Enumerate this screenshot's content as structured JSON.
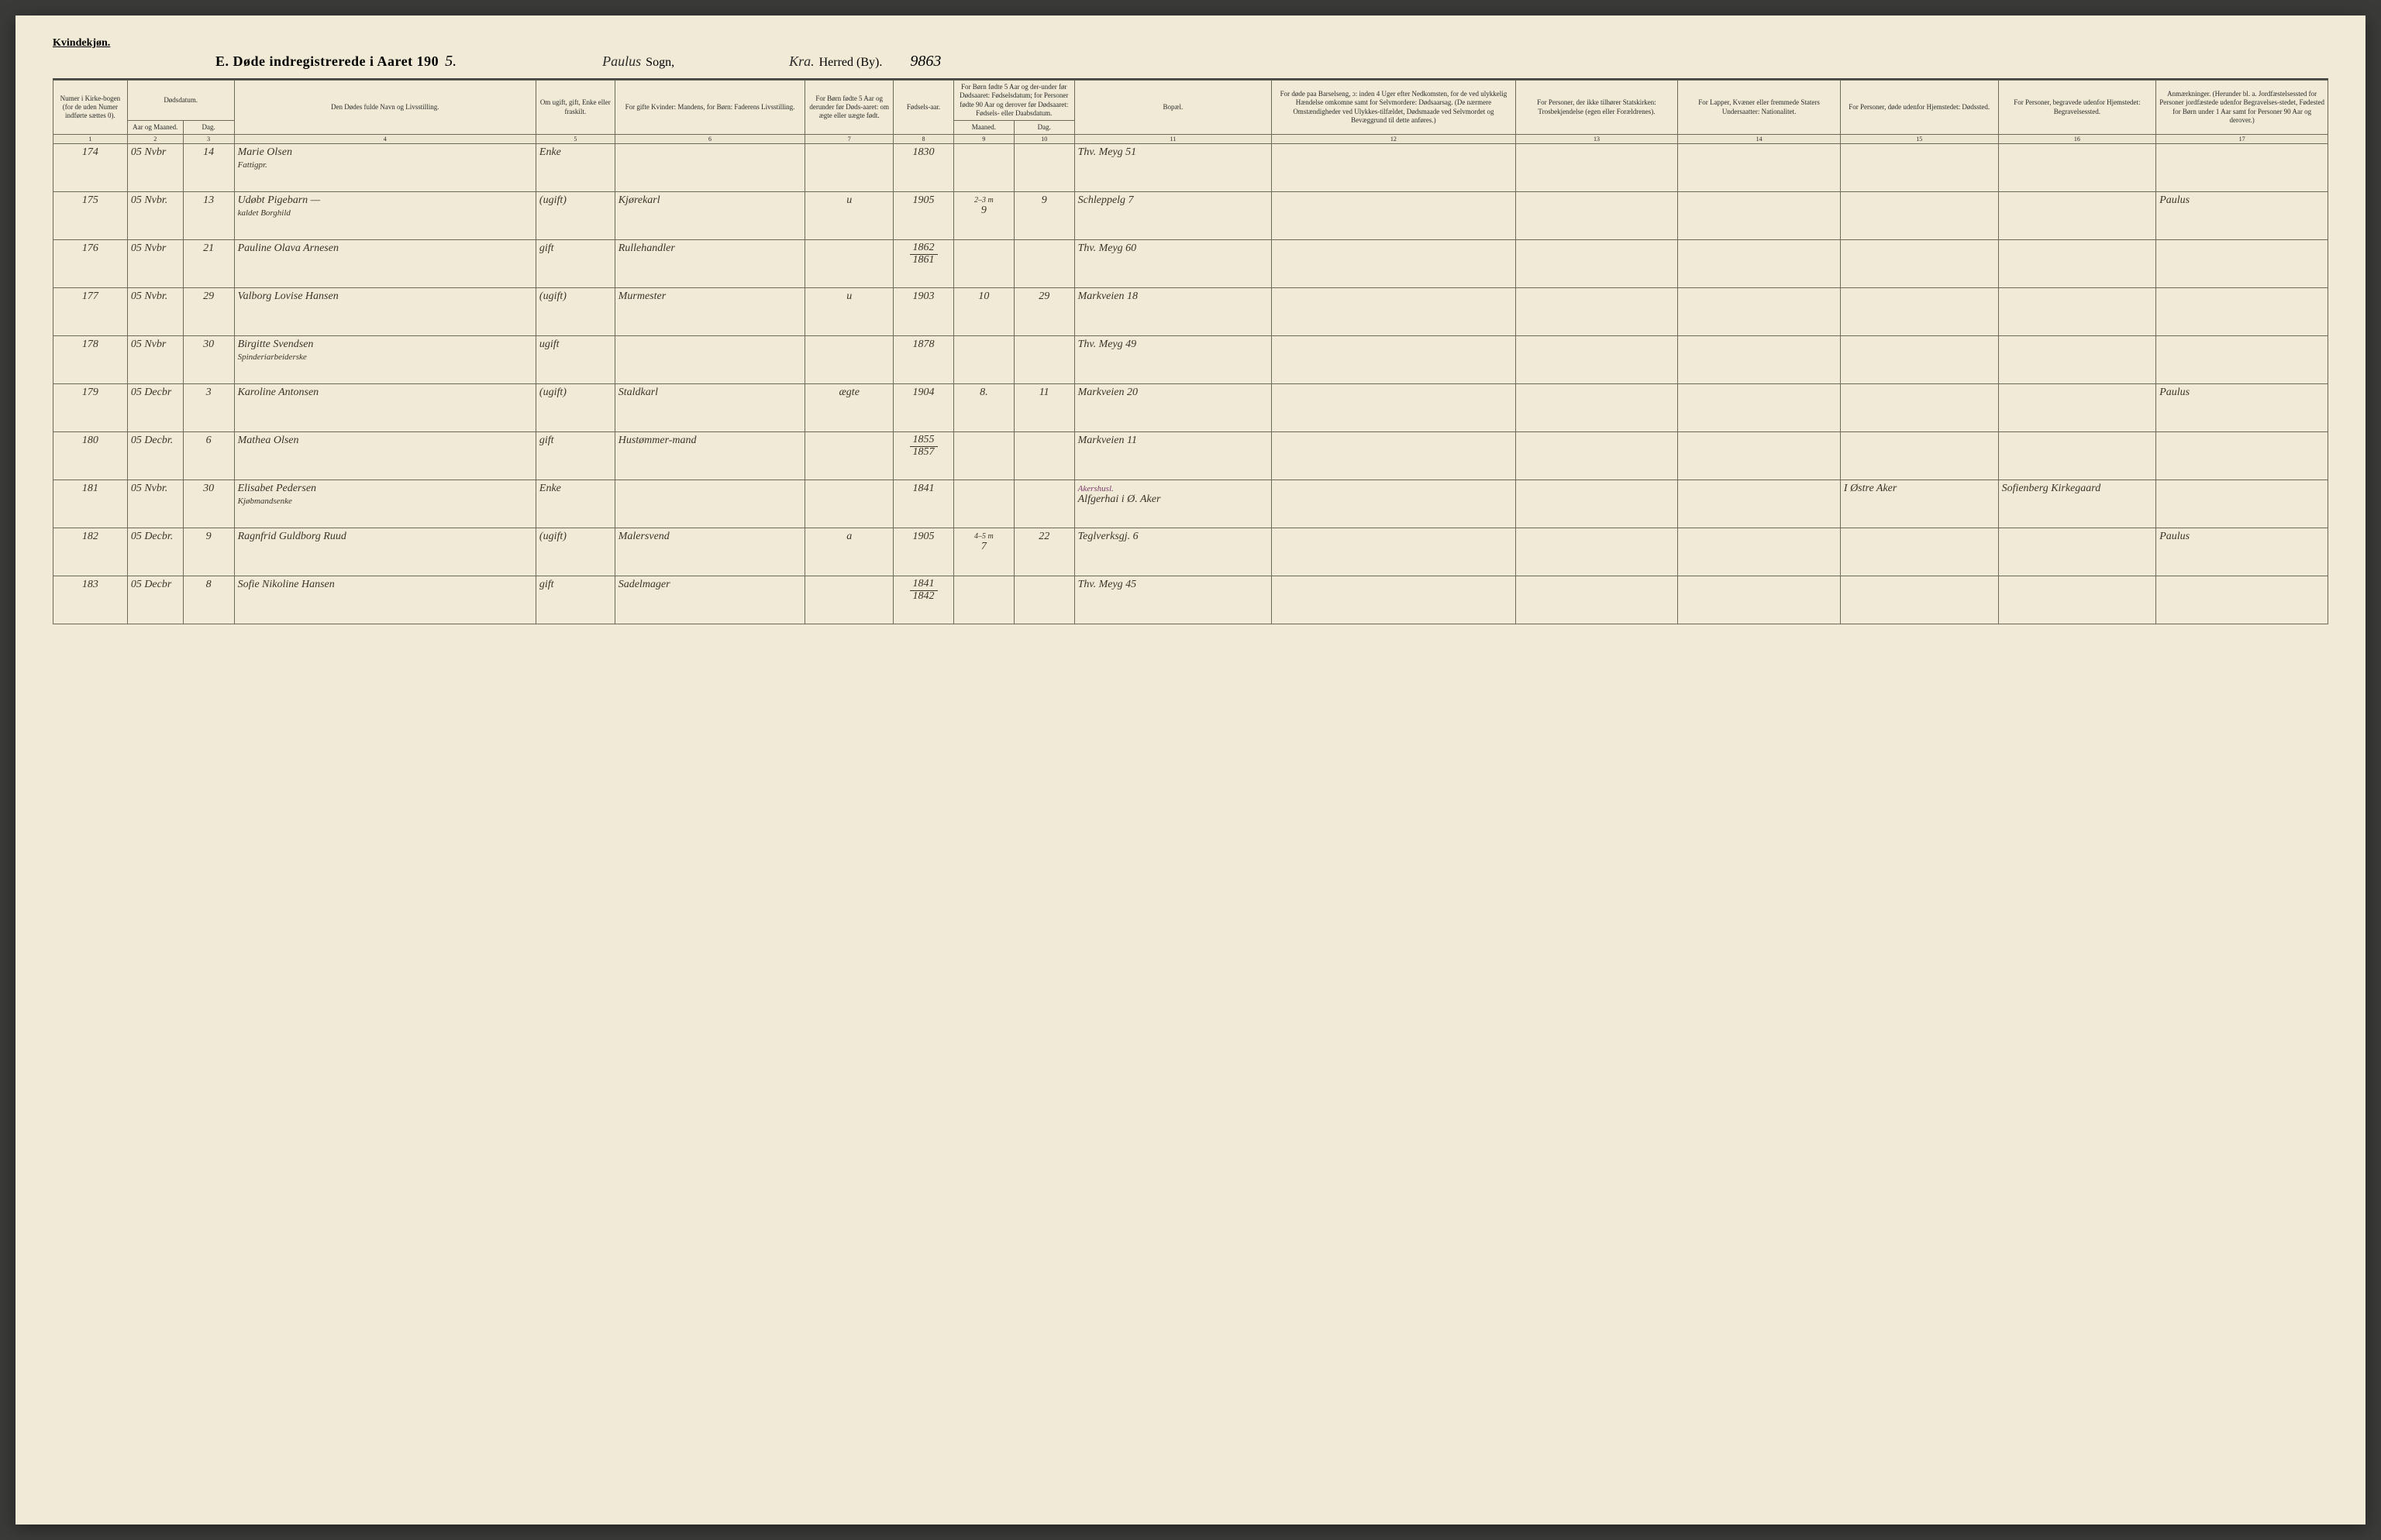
{
  "header": {
    "gender_label": "Kvindekjøn.",
    "title_prefix": "E.  Døde indregistrerede i Aaret 190",
    "title_year_suffix": "5.",
    "sogn_value": "Paulus",
    "sogn_label": "Sogn,",
    "herred_value": "Kra.",
    "herred_label": "Herred (By).",
    "page_number": "9863"
  },
  "columns": {
    "c1": "Numer i Kirke-bogen (for de uden Numer indførte sættes 0).",
    "c2": "Dødsdatum.",
    "c2a": "Aar og Maaned.",
    "c2b": "Dag.",
    "c4": "Den Dødes fulde Navn og Livsstilling.",
    "c5": "Om ugift, gift, Enke eller fraskilt.",
    "c6": "For gifte Kvinder: Mandens, for Børn: Faderens Livsstilling.",
    "c7": "For Børn fødte 5 Aar og derunder før Døds-aaret: om ægte eller uægte født.",
    "c8": "Fødsels-aar.",
    "c9_10": "For Børn fødte 5 Aar og der-under før Dødsaaret: Fødselsdatum; for Personer fødte 90 Aar og derover før Dødsaaret: Fødsels- eller Daabsdatum.",
    "c9": "Maaned.",
    "c10": "Dag.",
    "c11": "Bopæl.",
    "c12": "For døde paa Barselseng, ɔ: inden 4 Uger efter Nedkomsten, for de ved ulykkelig Hændelse omkomne samt for Selvmordere: Dødsaarsag. (De nærmere Omstændigheder ved Ulykkes-tilfældet, Dødsmaade ved Selvmordet og Bevæggrund til dette anføres.)",
    "c13": "For Personer, der ikke tilhører Statskirken: Trosbekjendelse (egen eller Forældrenes).",
    "c14": "For Lapper, Kvæner eller fremmede Staters Undersaatter: Nationalitet.",
    "c15": "For Personer, døde udenfor Hjemstedet: Dødssted.",
    "c16": "For Personer, begravede udenfor Hjemstedet: Begravelsessted.",
    "c17": "Anmærkninger. (Herunder bl. a. Jordfæstelsessted for Personer jordfæstede udenfor Begravelses-stedet, Fødested for Børn under 1 Aar samt for Personer 90 Aar og derover.)"
  },
  "colnums": [
    "1",
    "2",
    "3",
    "4",
    "5",
    "6",
    "7",
    "8",
    "9",
    "10",
    "11",
    "12",
    "13",
    "14",
    "15",
    "16",
    "17"
  ],
  "rows": [
    {
      "num": "174",
      "aar": "05 Nvbr",
      "dag": "14",
      "navn": "Marie Olsen",
      "navn_sub": "Fattigpr.",
      "stand": "Enke",
      "fader": "",
      "aegte": "",
      "faar": "1830",
      "fmnd": "",
      "fdag": "",
      "bopael": "Thv. Meyg 51",
      "c12": "",
      "c13": "",
      "c14": "",
      "c15": "",
      "c16": "",
      "c17": ""
    },
    {
      "num": "175",
      "aar": "05 Nvbr.",
      "dag": "13",
      "navn": "Udøbt Pigebarn —",
      "navn_sub": "kaldet Borghild",
      "stand": "(ugift)",
      "fader": "Kjørekarl",
      "aegte": "u",
      "faar": "1905",
      "fmnd": "9",
      "fdag": "9",
      "fmnd_top": "2–3 m",
      "bopael": "Schleppelg 7",
      "c12": "",
      "c13": "",
      "c14": "",
      "c15": "",
      "c16": "",
      "c17": "Paulus"
    },
    {
      "num": "176",
      "aar": "05 Nvbr",
      "dag": "21",
      "navn": "Pauline Olava Arnesen",
      "navn_sub": "",
      "stand": "gift",
      "fader": "Rullehandler",
      "aegte": "",
      "faar_frac_top": "1862",
      "faar_frac_bot": "1861",
      "fmnd": "",
      "fdag": "",
      "bopael": "Thv. Meyg 60",
      "c12": "",
      "c13": "",
      "c14": "",
      "c15": "",
      "c16": "",
      "c17": ""
    },
    {
      "num": "177",
      "aar": "05 Nvbr.",
      "dag": "29",
      "navn": "Valborg Lovise Hansen",
      "navn_sub": "",
      "stand": "(ugift)",
      "fader": "Murmester",
      "aegte": "u",
      "faar": "1903",
      "fmnd": "10",
      "fdag": "29",
      "bopael": "Markveien 18",
      "c12": "",
      "c13": "",
      "c14": "",
      "c15": "",
      "c16": "",
      "c17": ""
    },
    {
      "num": "178",
      "aar": "05 Nvbr",
      "dag": "30",
      "navn": "Birgitte Svendsen",
      "navn_sub": "Spinderiarbeiderske",
      "stand": "ugift",
      "fader": "",
      "aegte": "",
      "faar": "1878",
      "fmnd": "",
      "fdag": "",
      "bopael": "Thv. Meyg 49",
      "c12": "",
      "c13": "",
      "c14": "",
      "c15": "",
      "c16": "",
      "c17": ""
    },
    {
      "num": "179",
      "aar": "05 Decbr",
      "dag": "3",
      "navn": "Karoline Antonsen",
      "navn_sub": "",
      "stand": "(ugift)",
      "fader": "Staldkarl",
      "aegte": "ægte",
      "faar": "1904",
      "fmnd": "8.",
      "fdag": "11",
      "bopael": "Markveien 20",
      "c12": "",
      "c13": "",
      "c14": "",
      "c15": "",
      "c16": "",
      "c17": "Paulus"
    },
    {
      "num": "180",
      "aar": "05 Decbr.",
      "dag": "6",
      "navn": "Mathea Olsen",
      "navn_sub": "",
      "stand": "gift",
      "fader": "Hustømmer-mand",
      "aegte": "",
      "faar_frac_top": "1855",
      "faar_frac_bot": "1857",
      "fmnd": "",
      "fdag": "",
      "bopael": "Markveien 11",
      "c12": "",
      "c13": "",
      "c14": "",
      "c15": "",
      "c16": "",
      "c17": ""
    },
    {
      "num": "181",
      "aar": "05 Nvbr.",
      "dag": "30",
      "navn": "Elisabet Pedersen",
      "navn_sub": "Kjøbmandsenke",
      "stand": "Enke",
      "fader": "",
      "aegte": "",
      "faar": "1841",
      "fmnd": "",
      "fdag": "",
      "bopael": "Alfgerhai i Ø. Aker",
      "bopael_sub": "Akershusl.",
      "c12": "",
      "c13": "",
      "c14": "",
      "c15": "I Østre Aker",
      "c16": "Sofienberg Kirkegaard",
      "c17": ""
    },
    {
      "num": "182",
      "aar": "05 Decbr.",
      "dag": "9",
      "navn": "Ragnfrid Guldborg Ruud",
      "navn_sub": "",
      "stand": "(ugift)",
      "fader": "Malersvend",
      "aegte": "a",
      "faar": "1905",
      "fmnd": "7",
      "fdag": "22",
      "fmnd_top": "4–5 m",
      "bopael": "Teglverksgj. 6",
      "c12": "",
      "c13": "",
      "c14": "",
      "c15": "",
      "c16": "",
      "c17": "Paulus"
    },
    {
      "num": "183",
      "aar": "05 Decbr",
      "dag": "8",
      "navn": "Sofie Nikoline Hansen",
      "navn_sub": "",
      "stand": "gift",
      "fader": "Sadelmager",
      "aegte": "",
      "faar_frac_top": "1841",
      "faar_frac_bot": "1842",
      "fmnd": "",
      "fdag": "",
      "bopael": "Thv. Meyg 45",
      "c12": "",
      "c13": "",
      "c14": "",
      "c15": "",
      "c16": "",
      "c17": ""
    }
  ]
}
